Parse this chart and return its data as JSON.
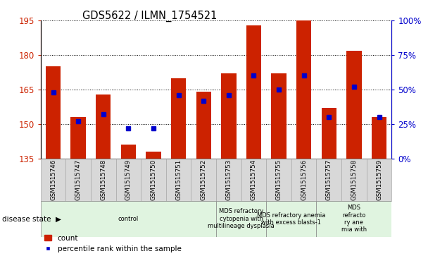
{
  "title": "GDS5622 / ILMN_1754521",
  "samples": [
    "GSM1515746",
    "GSM1515747",
    "GSM1515748",
    "GSM1515749",
    "GSM1515750",
    "GSM1515751",
    "GSM1515752",
    "GSM1515753",
    "GSM1515754",
    "GSM1515755",
    "GSM1515756",
    "GSM1515757",
    "GSM1515758",
    "GSM1515759"
  ],
  "counts": [
    175,
    153,
    163,
    141,
    138,
    170,
    164,
    172,
    193,
    172,
    195,
    157,
    182,
    153
  ],
  "percentiles": [
    48,
    27,
    32,
    22,
    22,
    46,
    42,
    46,
    60,
    50,
    60,
    30,
    52,
    30
  ],
  "ymin": 135,
  "ymax": 195,
  "pmin": 0,
  "pmax": 100,
  "yticks": [
    135,
    150,
    165,
    180,
    195
  ],
  "pticks": [
    0,
    25,
    50,
    75,
    100
  ],
  "bar_color": "#cc2200",
  "marker_color": "#0000cc",
  "bar_width": 0.6,
  "groups": [
    {
      "label": "control",
      "start": 0,
      "end": 7
    },
    {
      "label": "MDS refractory\ncytopenia with\nmultilineage dysplasia",
      "start": 7,
      "end": 9
    },
    {
      "label": "MDS refractory anemia\nwith excess blasts-1",
      "start": 9,
      "end": 11
    },
    {
      "label": "MDS\nrefracto\nry ane\nmia with",
      "start": 11,
      "end": 14
    }
  ],
  "group_color": "#e0f4e0",
  "sample_bg_color": "#d8d8d8",
  "legend_labels": [
    "count",
    "percentile rank within the sample"
  ]
}
